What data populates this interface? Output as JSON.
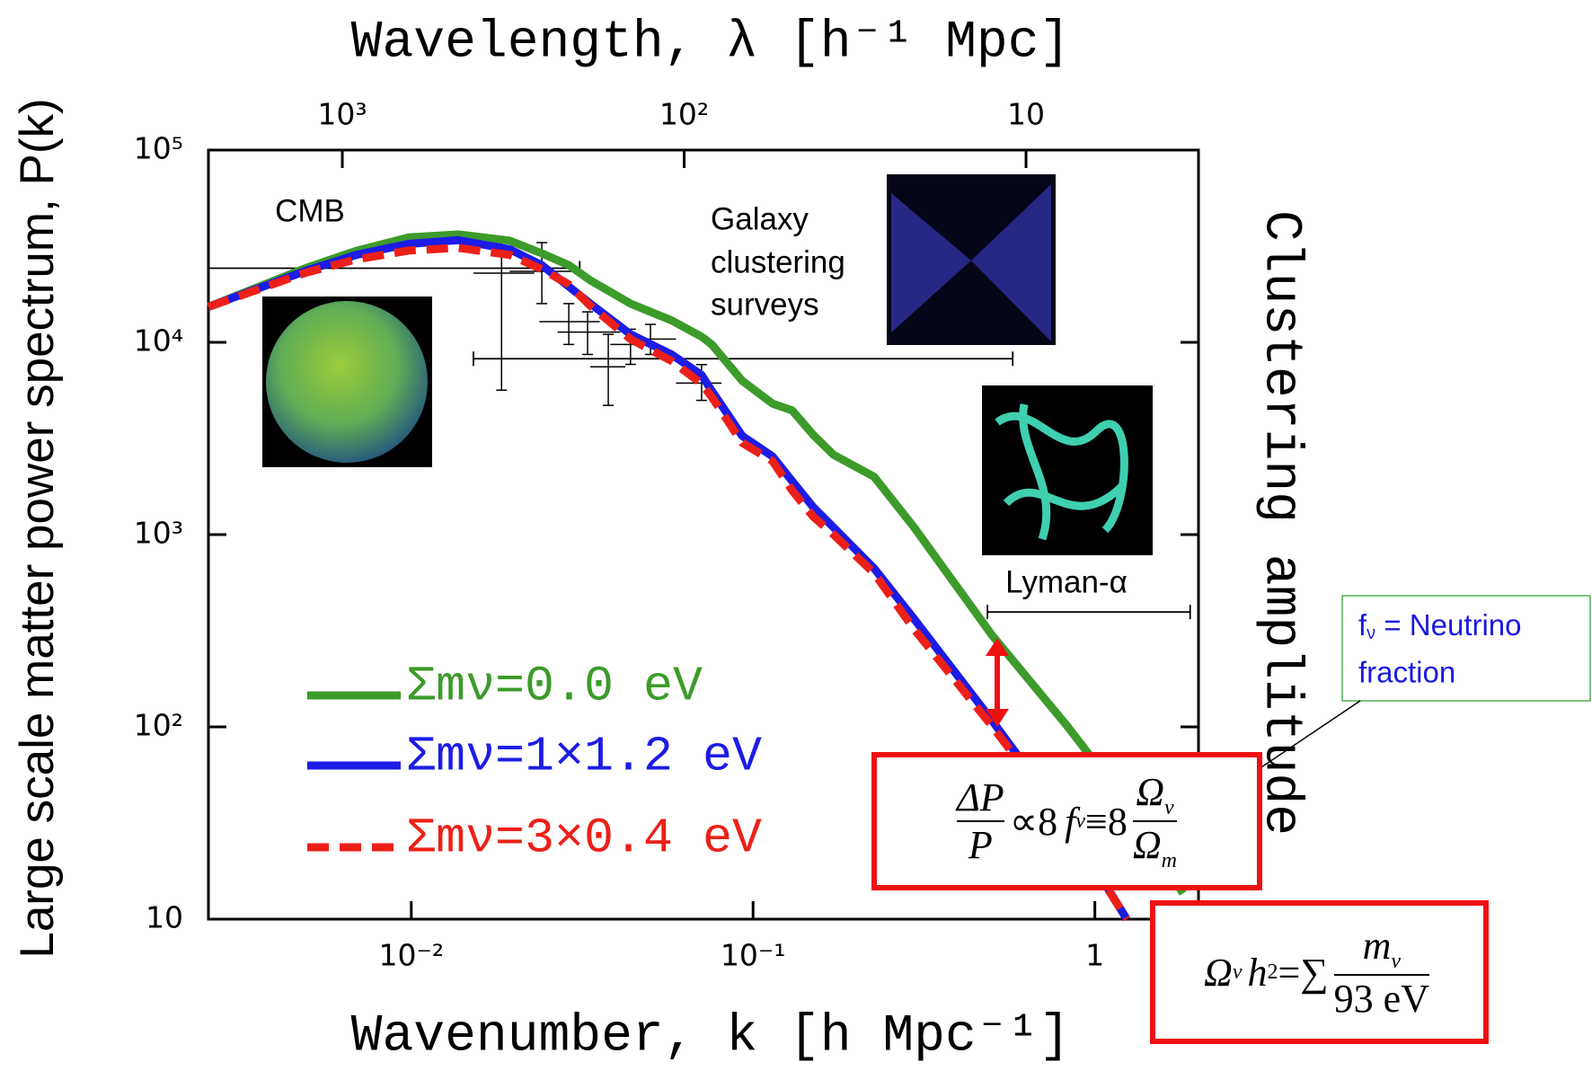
{
  "chart_data": {
    "type": "line",
    "x2_label": "Wavelength, λ [h⁻¹ Mpc]",
    "xlabel": "Wavenumber, k [h Mpc⁻¹]",
    "ylabel": "Large scale matter power spectrum, P(k)",
    "right_label": "Clustering amplitude",
    "log_scale": {
      "x": true,
      "y": true
    },
    "xlim": [
      0.00255,
      2.01
    ],
    "ylim": [
      10,
      100000
    ],
    "x2lim": [
      2464,
      3.13
    ],
    "xticks": [
      {
        "value": 0.01,
        "label": "10⁻²"
      },
      {
        "value": 0.1,
        "label": "10⁻¹"
      },
      1
    ],
    "yticks": [
      10,
      {
        "value": 100,
        "label": "10²"
      },
      {
        "value": 1000,
        "label": "10³"
      },
      {
        "value": 10000,
        "label": "10⁴"
      },
      {
        "value": 100000,
        "label": "10⁵"
      }
    ],
    "x2ticks": [
      {
        "value": 1000,
        "label": "10³"
      },
      {
        "value": 100,
        "label": "10²"
      },
      10
    ],
    "x": [
      0.00255,
      0.0049,
      0.0069,
      0.0098,
      0.0137,
      0.0194,
      0.0241,
      0.0289,
      0.0334,
      0.0438,
      0.0577,
      0.0707,
      0.0757,
      0.093,
      0.114,
      0.13,
      0.15,
      0.172,
      0.226,
      0.296,
      0.5,
      0.83,
      1.24,
      1.81
    ],
    "series": [
      {
        "name": "Σmν=0.0 eV",
        "color": "#3c9b2a",
        "line_style": "solid",
        "values": [
          15300,
          24300,
          29900,
          35100,
          36400,
          33800,
          29000,
          25200,
          21000,
          15900,
          13000,
          10700,
          9750,
          6300,
          4800,
          4430,
          3300,
          2600,
          2000,
          1090,
          300,
          101,
          40,
          13.6
        ]
      },
      {
        "name": "Σmν=1×1.2 eV",
        "color": "#1c1ce6",
        "line_style": "solid",
        "values": [
          15300,
          23500,
          28500,
          32500,
          34000,
          30500,
          25200,
          19500,
          15900,
          11000,
          8650,
          6770,
          5600,
          3260,
          2550,
          1900,
          1390,
          1090,
          668,
          364,
          108,
          31.8,
          10,
          null
        ]
      },
      {
        "name": "Σmν=3×0.4 eV",
        "color": "#ec2018",
        "line_style": "dashed",
        "values": [
          15300,
          23000,
          27000,
          30000,
          31000,
          28500,
          24000,
          20000,
          15500,
          10400,
          8000,
          6100,
          5200,
          3000,
          2410,
          1700,
          1240,
          1000,
          630,
          322,
          101,
          31,
          10,
          null
        ]
      }
    ],
    "error_color": "#000000",
    "points": {
      "x": [
        0.01837,
        0.0241,
        0.0289,
        0.0328,
        0.0377,
        0.0438,
        0.0501,
        0.0707
      ],
      "y": [
        22900,
        23400,
        12800,
        11300,
        7460,
        9750,
        10400,
        6140
      ],
      "xlow": [
        0.0152,
        0.0194,
        0.0237,
        0.0268,
        0.0334,
        0.0382,
        0.0423,
        0.0595
      ],
      "xhigh": [
        0.0229,
        0.0311,
        0.0356,
        0.0409,
        0.0423,
        0.0519,
        0.0595,
        0.0809
      ],
      "ylow": [
        5640,
        15900,
        9750,
        8650,
        4700,
        7680,
        8650,
        4990
      ],
      "yhigh": [
        33800,
        33000,
        15900,
        14400,
        11000,
        11700,
        12400,
        7660
      ]
    },
    "ranges": {
      "y": [
        24300,
        8220,
        396
      ],
      "xlow": [
        0.00255,
        0.0152,
        0.485
      ],
      "xhigh": [
        0.0311,
        0.575,
        1.9
      ]
    },
    "annotations": {
      "cmb": "CMB",
      "galaxy": [
        "Galaxy",
        "clustering",
        "surveys"
      ],
      "lyman": "Lyman-α",
      "neutrino_note": {
        "f": "f",
        "sub": "ν",
        "rest": " = Neutrino",
        "line2": "fraction"
      }
    },
    "formula_1": {
      "num": "ΔP",
      "den": "P",
      "prop": "∝8",
      "f": "f",
      "f_sub": "ν",
      "equiv": "≡8",
      "rnum": "Ω",
      "rnum_sub": "ν",
      "rden": "Ω",
      "rden_sub": "m"
    },
    "formula_2": {
      "omega": "Ω",
      "omega_sub": "ν",
      "h": "h",
      "h_sup": "2",
      "eq": "=∑",
      "num": "m",
      "num_sub": "ν",
      "den": "93 eV"
    }
  }
}
